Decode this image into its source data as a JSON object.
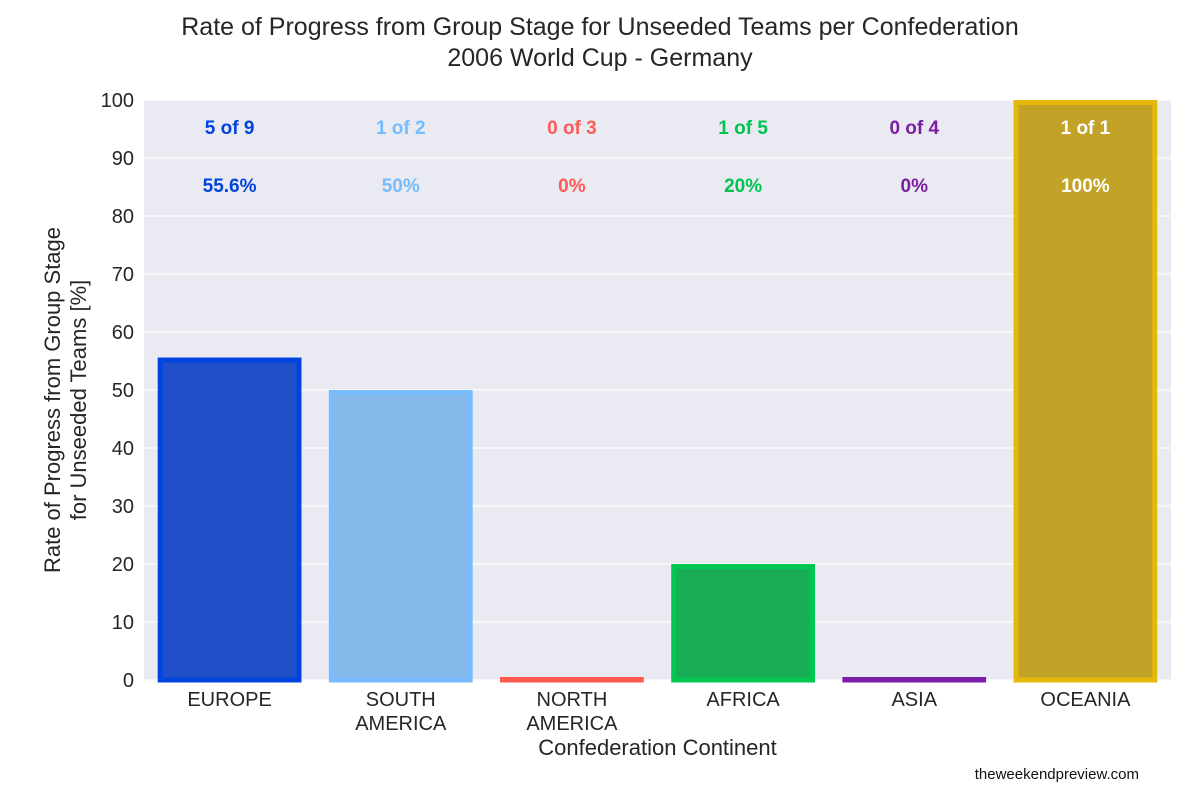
{
  "chart_data": {
    "type": "bar",
    "title": [
      "Rate of Progress from Group Stage for Unseeded Teams per Confederation",
      "2006 World Cup - Germany"
    ],
    "xlabel": "Confederation Continent",
    "ylabel": [
      "Rate of Progress from Group Stage",
      "for Unseeded Teams [%]"
    ],
    "ylim": [
      0,
      100
    ],
    "yticks": [
      0,
      10,
      20,
      30,
      40,
      50,
      60,
      70,
      80,
      90,
      100
    ],
    "grid": true,
    "categories": [
      [
        "EUROPE"
      ],
      [
        "SOUTH",
        "AMERICA"
      ],
      [
        "NORTH",
        "AMERICA"
      ],
      [
        "AFRICA"
      ],
      [
        "ASIA"
      ],
      [
        "OCEANIA"
      ]
    ],
    "values": [
      55.6,
      50,
      0,
      20,
      0,
      100
    ],
    "count_labels": [
      "5 of 9",
      "1 of 2",
      "0 of 3",
      "1 of 5",
      "0 of 4",
      "1 of 1"
    ],
    "percent_labels": [
      "55.6%",
      "50%",
      "0%",
      "20%",
      "0%",
      "100%"
    ],
    "bar_fill_colors": [
      "#1f4ec6",
      "#85b9ec",
      "#e8524a",
      "#19ad55",
      "#7b1fa2",
      "#c2a328"
    ],
    "bar_edge_colors": [
      "#0044e0",
      "#78bcff",
      "#ff5a50",
      "#00c850",
      "#7c1ea8",
      "#e6b80a"
    ],
    "label_colors": [
      "#0044dd",
      "#75bbff",
      "#ff5a55",
      "#00c44f",
      "#7b1fa2",
      "#ffffff"
    ],
    "background_color": "#eaeaf2"
  },
  "credit": "theweekendpreview.com"
}
